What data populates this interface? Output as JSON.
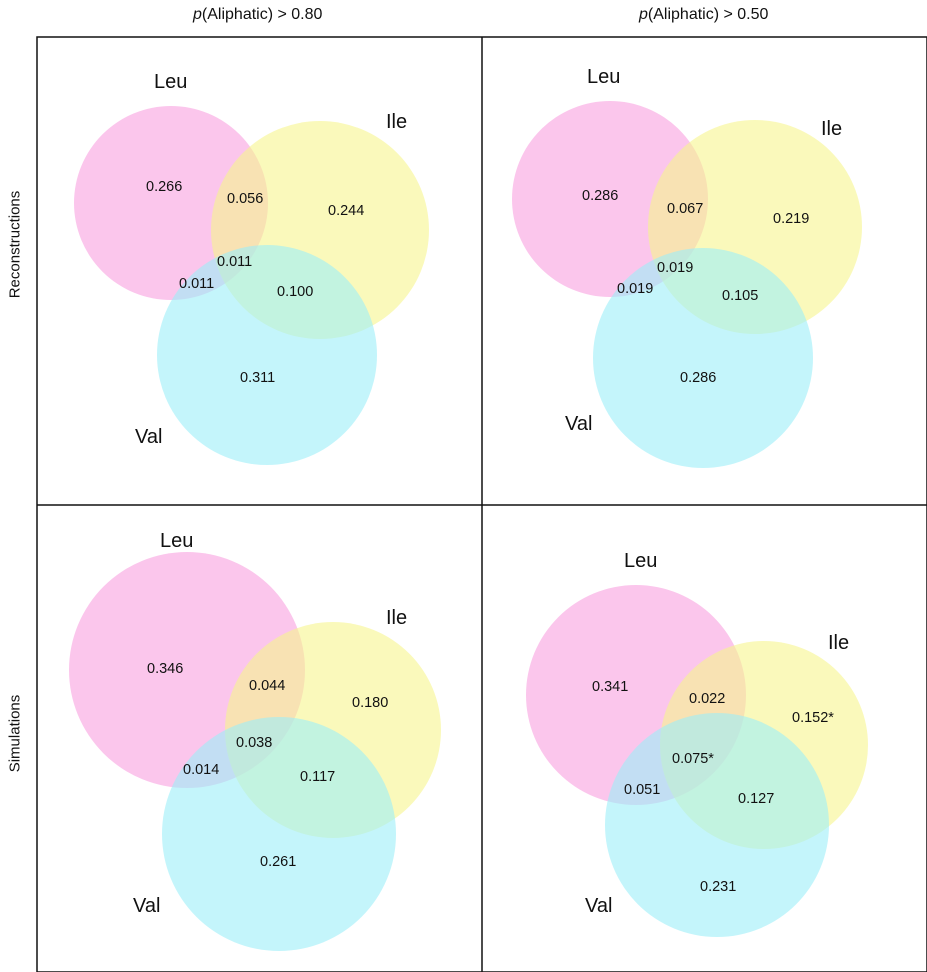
{
  "columns": [
    {
      "prefix": "p",
      "text": "(Aliphatic) > 0.80"
    },
    {
      "prefix": "p",
      "text": "(Aliphatic) > 0.50"
    }
  ],
  "rows": [
    "Reconstructions",
    "Simulations"
  ],
  "colors": {
    "leu": "#f8a0df",
    "ile": "#f7f58e",
    "val": "#9deef9",
    "border": "#111111"
  },
  "panels": [
    {
      "sets": {
        "leu": "Leu",
        "ile": "Ile",
        "val": "Val"
      },
      "values": {
        "leu_only": "0.266",
        "ile_only": "0.244",
        "val_only": "0.311",
        "leu_ile": "0.056",
        "leu_val": "0.011",
        "ile_val": "0.100",
        "all": "0.011"
      }
    },
    {
      "sets": {
        "leu": "Leu",
        "ile": "Ile",
        "val": "Val"
      },
      "values": {
        "leu_only": "0.286",
        "ile_only": "0.219",
        "val_only": "0.286",
        "leu_ile": "0.067",
        "leu_val": "0.019",
        "ile_val": "0.105",
        "all": "0.019"
      }
    },
    {
      "sets": {
        "leu": "Leu",
        "ile": "Ile",
        "val": "Val"
      },
      "values": {
        "leu_only": "0.346",
        "ile_only": "0.180",
        "val_only": "0.261",
        "leu_ile": "0.044",
        "leu_val": "0.014",
        "ile_val": "0.117",
        "all": "0.038"
      }
    },
    {
      "sets": {
        "leu": "Leu",
        "ile": "Ile",
        "val": "Val"
      },
      "values": {
        "leu_only": "0.341",
        "ile_only": "0.152*",
        "val_only": "0.231",
        "leu_ile": "0.022",
        "leu_val": "0.051",
        "ile_val": "0.127",
        "all": "0.075*"
      }
    }
  ]
}
